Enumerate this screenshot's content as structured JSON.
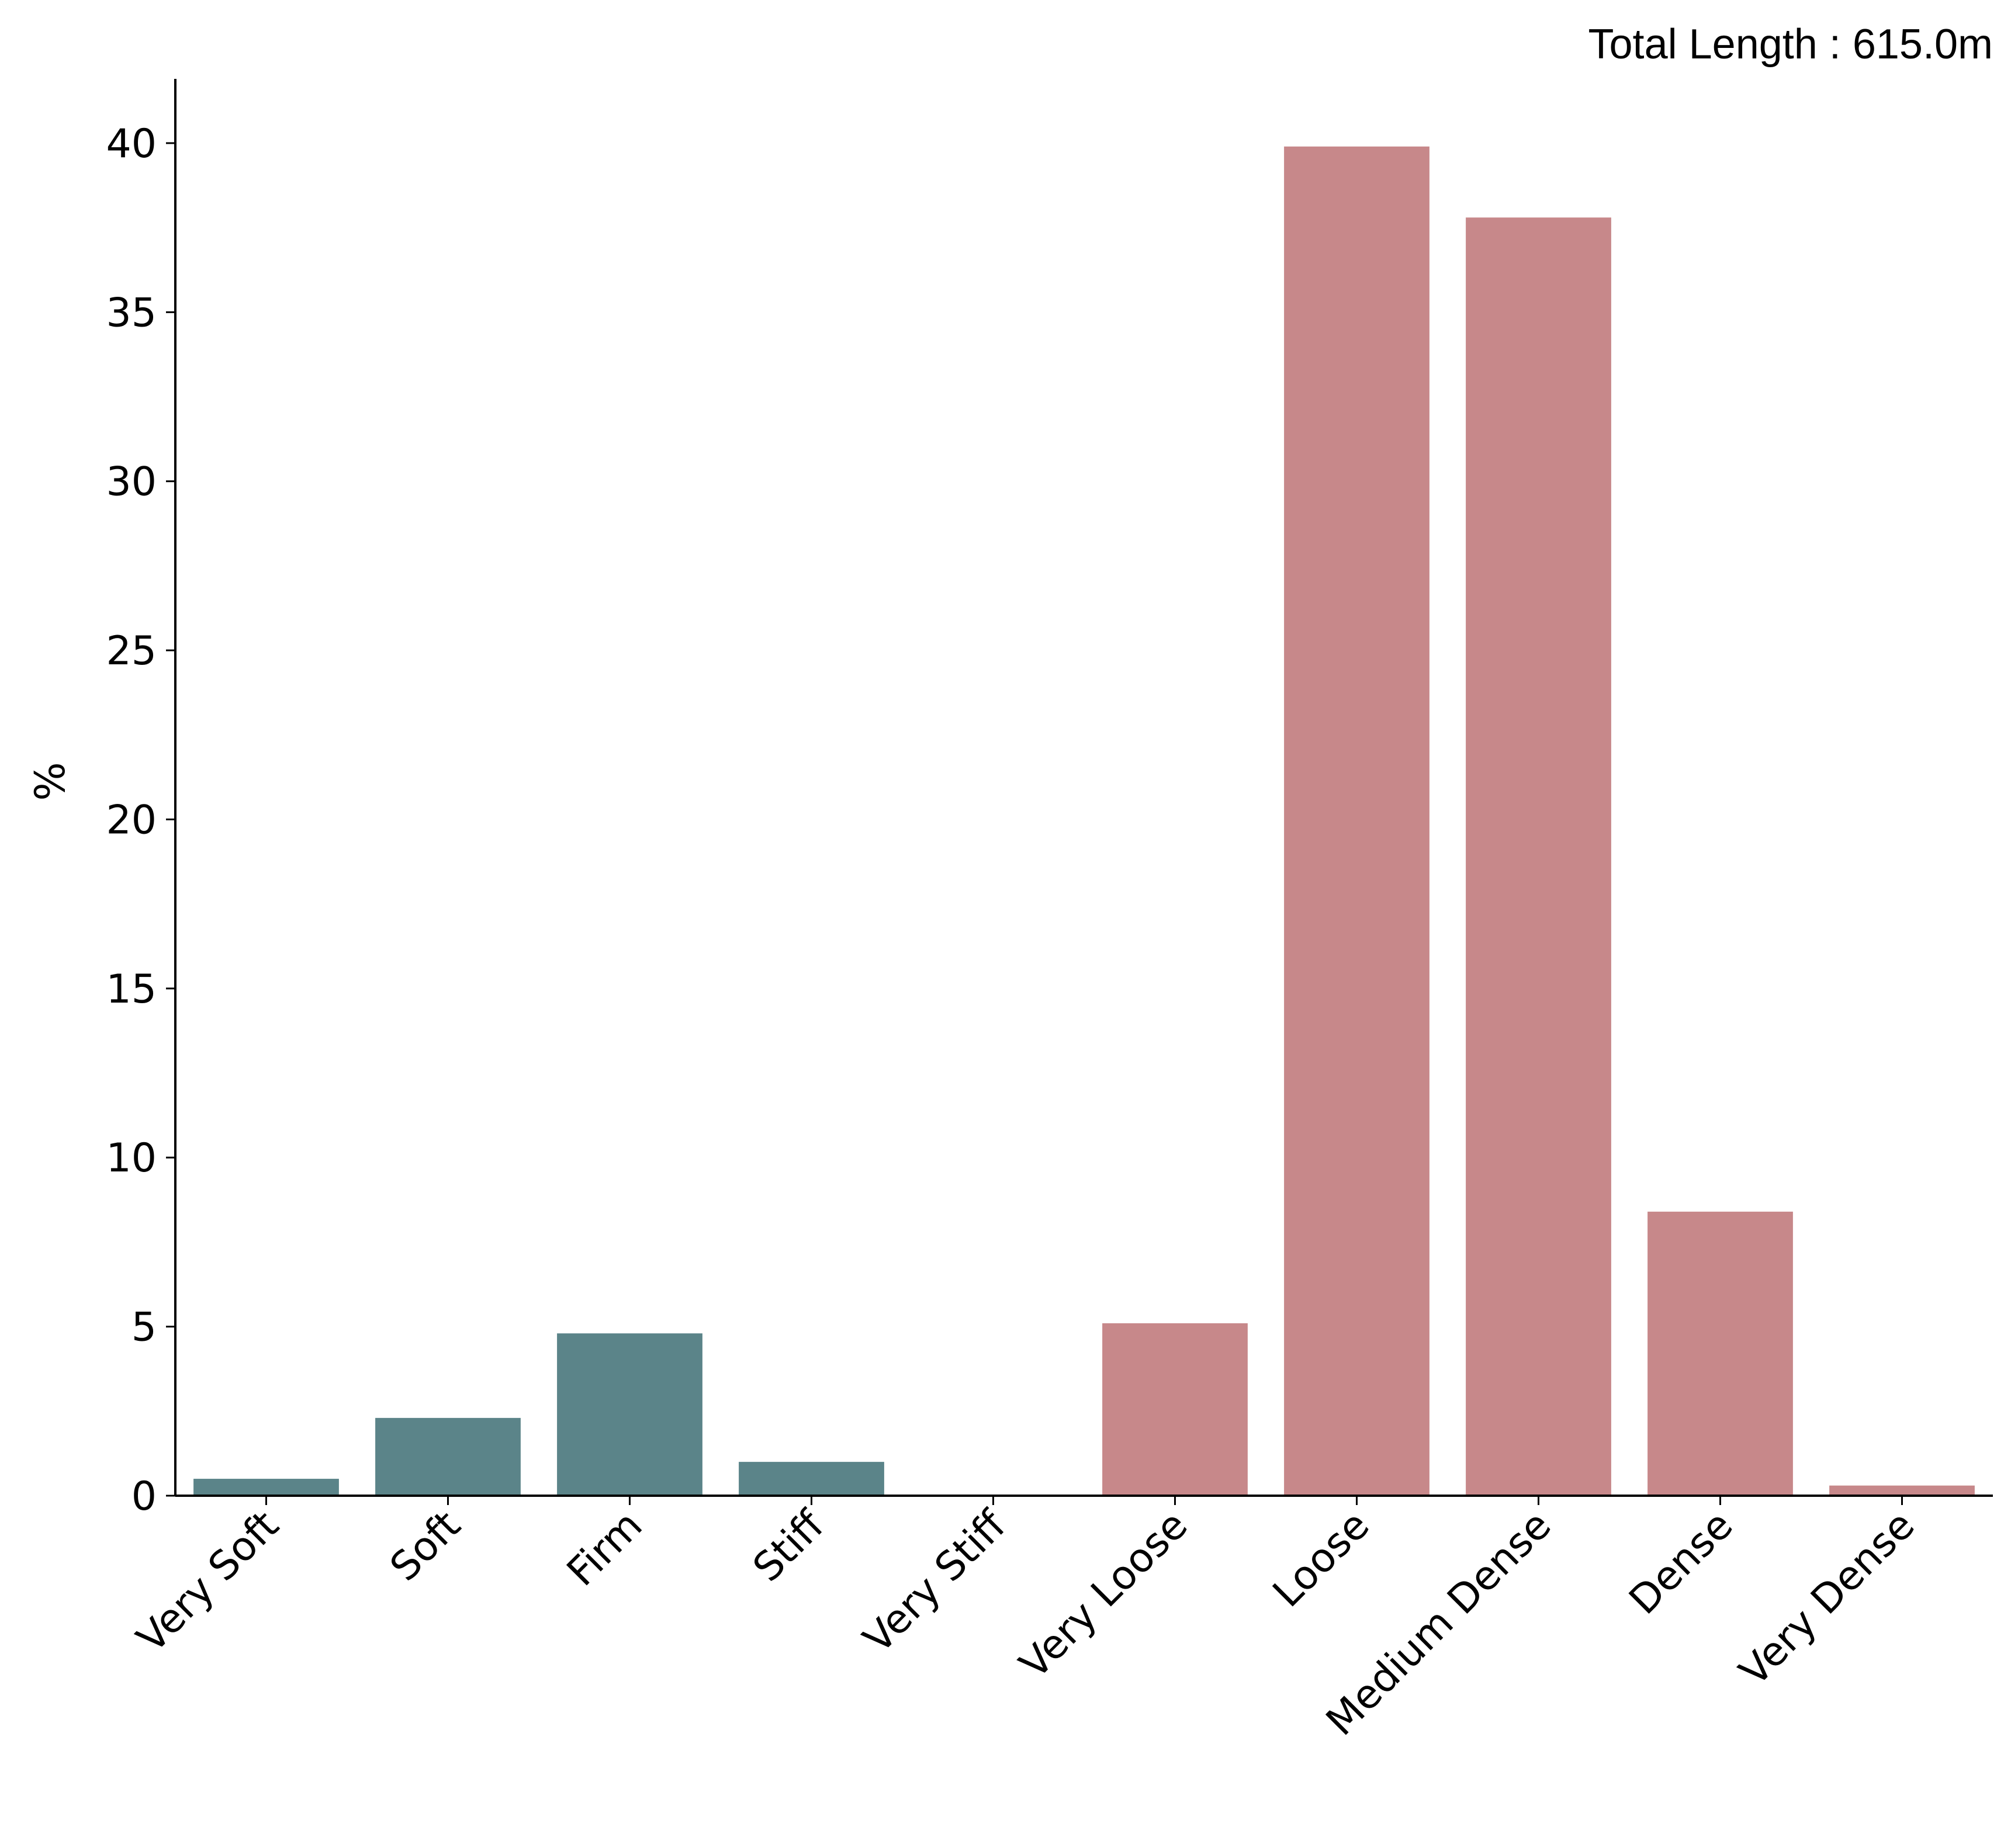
{
  "chart_data": {
    "type": "bar",
    "title": "",
    "annotation": "Total Length : 615.0m",
    "xlabel": "",
    "ylabel": "%",
    "ylim": [
      0,
      41.9
    ],
    "yticks": [
      0,
      5,
      10,
      15,
      20,
      25,
      30,
      35,
      40
    ],
    "grid": false,
    "categories": [
      "Very Soft",
      "Soft",
      "Firm",
      "Stiff",
      "Very Stiff",
      "Very Loose",
      "Loose",
      "Medium Dense",
      "Dense",
      "Very Dense"
    ],
    "values": [
      0.5,
      2.3,
      4.8,
      1.0,
      0.0,
      5.1,
      39.9,
      37.8,
      8.4,
      0.3
    ],
    "bar_colors": [
      "#5b8489",
      "#5b8489",
      "#5b8489",
      "#5b8489",
      "#5b8489",
      "#c7888a",
      "#c7888a",
      "#c7888a",
      "#c7888a",
      "#c7888a"
    ]
  }
}
